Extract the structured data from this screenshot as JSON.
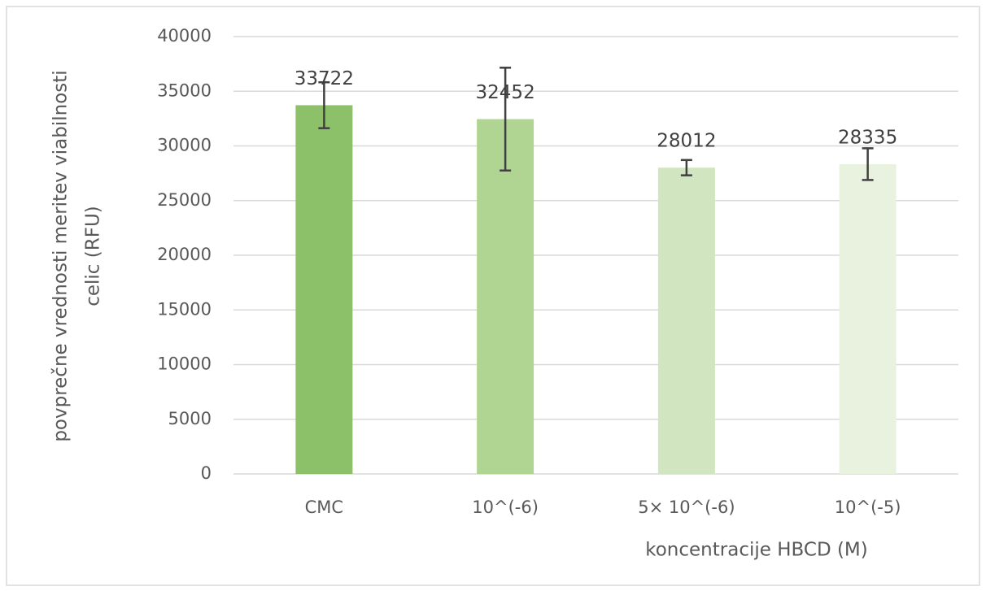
{
  "chart_data": {
    "type": "bar",
    "categories": [
      "CMC",
      "10^(-6)",
      "5× 10^(-6)",
      "10^(-5)"
    ],
    "values": [
      33722,
      32452,
      28012,
      28335
    ],
    "errors": [
      2100,
      4700,
      700,
      1450
    ],
    "colors": [
      "#8cc16a",
      "#b0d593",
      "#d1e5c0",
      "#e8f2df"
    ],
    "xlabel": "koncentracije HBCD (M)",
    "ylabel": [
      "povprečne vrednosti meritev viabilnosti",
      "celic (RFU)"
    ],
    "ylim": [
      0,
      40000
    ],
    "yticks": [
      0,
      5000,
      10000,
      15000,
      20000,
      25000,
      30000,
      35000,
      40000
    ],
    "grid": true
  }
}
